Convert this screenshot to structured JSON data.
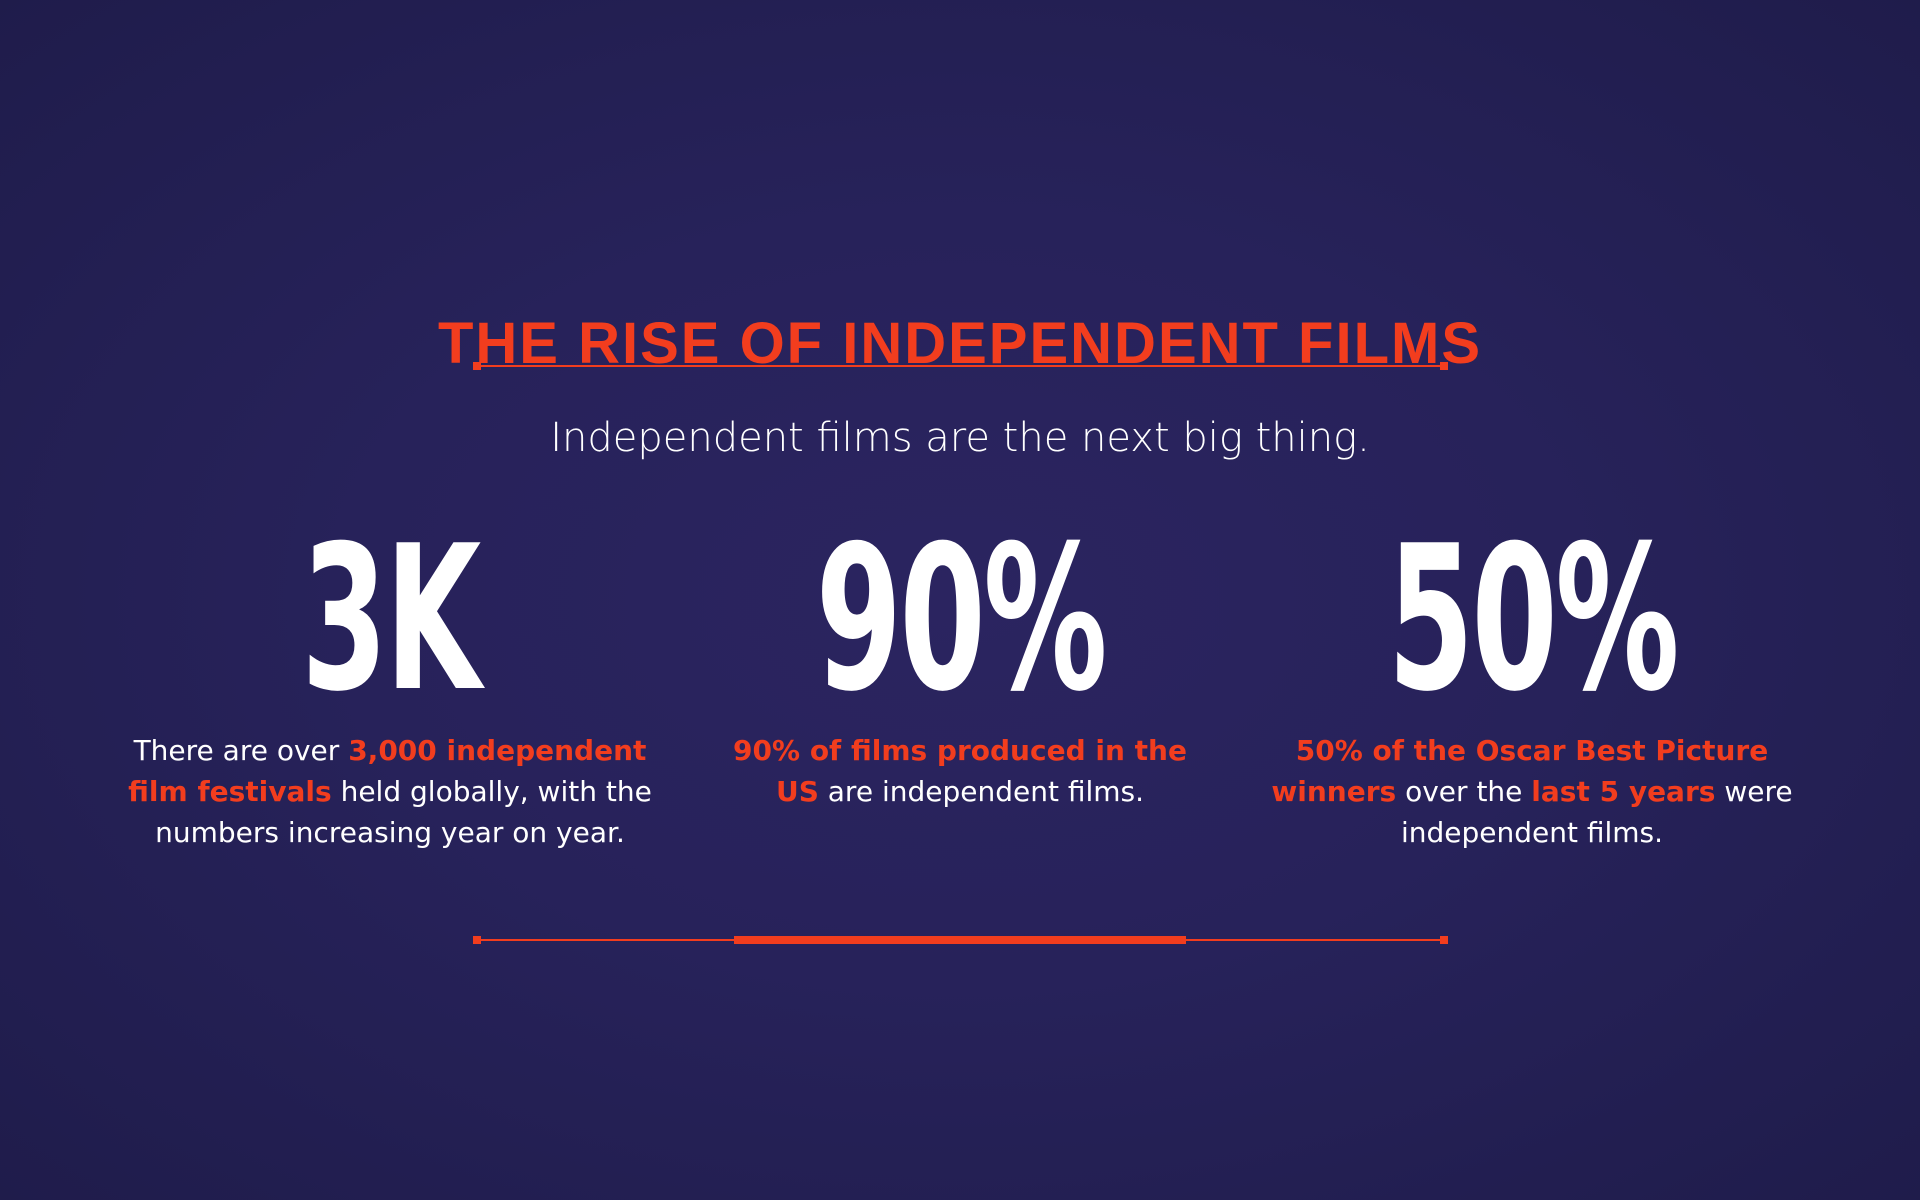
{
  "colors": {
    "accent": "#f23d1e",
    "text": "#ffffff",
    "background": "#27225a"
  },
  "header": {
    "title": "THE RISE OF INDEPENDENT FILMS",
    "subtitle": "Independent films are the next big thing."
  },
  "stats": [
    {
      "value": "3K",
      "desc": [
        {
          "text": "There are over ",
          "hl": false
        },
        {
          "text": "3,000 independent film festivals",
          "hl": true
        },
        {
          "text": " held globally, with the numbers increasing year on year.",
          "hl": false
        }
      ]
    },
    {
      "value": "90%",
      "desc": [
        {
          "text": "90% of films produced in the US",
          "hl": true
        },
        {
          "text": " are independent films.",
          "hl": false
        }
      ]
    },
    {
      "value": "50%",
      "desc": [
        {
          "text": "50% of the Oscar Best Picture winners",
          "hl": true
        },
        {
          "text": " over the ",
          "hl": false
        },
        {
          "text": "last 5 years",
          "hl": true
        },
        {
          "text": " were independent films.",
          "hl": false
        }
      ]
    }
  ]
}
